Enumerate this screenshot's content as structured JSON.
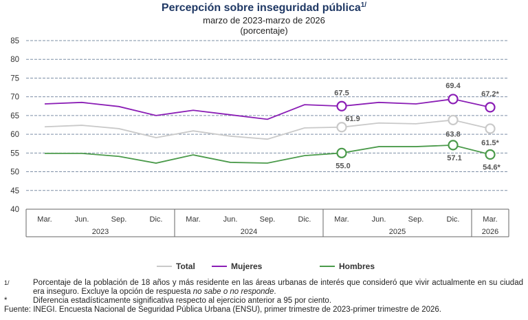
{
  "chart_data": {
    "type": "line",
    "title": "Percepción sobre inseguridad pública",
    "title_note": "1/",
    "subtitle": "marzo de 2023-marzo de 2026",
    "unit_label": "(porcentaje)",
    "groups": [
      {
        "label": "2023",
        "categories": [
          "Mar.",
          "Jun.",
          "Sep.",
          "Dic."
        ]
      },
      {
        "label": "2024",
        "categories": [
          "Mar.",
          "Jun.",
          "Sep.",
          "Dic."
        ]
      },
      {
        "label": "2025",
        "categories": [
          "Mar.",
          "Jun.",
          "Sep.",
          "Dic."
        ]
      },
      {
        "label": "2026",
        "categories": [
          "Mar."
        ]
      }
    ],
    "series": [
      {
        "name": "Total",
        "color": "#c9c9c9",
        "values": [
          62.0,
          62.4,
          61.5,
          59.1,
          60.9,
          59.5,
          58.7,
          61.7,
          61.9,
          63.0,
          62.8,
          63.8,
          61.5
        ],
        "value_labels": [
          null,
          null,
          null,
          null,
          null,
          null,
          null,
          null,
          "61.9",
          null,
          null,
          "63.8",
          "61.5*"
        ]
      },
      {
        "name": "Mujeres",
        "color": "#8a1db5",
        "values": [
          68.1,
          68.5,
          67.4,
          65.0,
          66.4,
          65.2,
          64.0,
          67.9,
          67.5,
          68.5,
          68.1,
          69.4,
          67.2
        ],
        "value_labels": [
          null,
          null,
          null,
          null,
          null,
          null,
          null,
          null,
          "67.5",
          null,
          null,
          "69.4",
          "67.2*"
        ]
      },
      {
        "name": "Hombres",
        "color": "#4a9a4a",
        "values": [
          54.9,
          54.9,
          54.1,
          52.3,
          54.5,
          52.5,
          52.3,
          54.3,
          55.0,
          56.7,
          56.7,
          57.1,
          54.6
        ],
        "value_labels": [
          null,
          null,
          null,
          null,
          null,
          null,
          null,
          null,
          "55.0",
          null,
          null,
          "57.1",
          "54.6*"
        ]
      }
    ],
    "ylim": [
      40,
      85
    ],
    "yticks": [
      40,
      45,
      50,
      55,
      60,
      65,
      70,
      75,
      80,
      85
    ],
    "grid": true
  },
  "notes": [
    {
      "marker": "1/",
      "text": "Porcentaje de la población de 18 años y más residente en las áreas urbanas de interés que consideró que vivir actualmente en su ciudad era inseguro. Excluye la opción de respuesta ",
      "italic": "no sabe o no responde",
      "end": "."
    },
    {
      "marker": "*",
      "text": "Diferencia estadísticamente significativa respecto al ejercicio anterior a 95 por ciento."
    }
  ],
  "source": {
    "label": "Fuente:",
    "text": "INEGI. Encuesta Nacional de Seguridad Pública Urbana (ENSU), primer trimestre de 2023-primer trimestre de 2026."
  }
}
